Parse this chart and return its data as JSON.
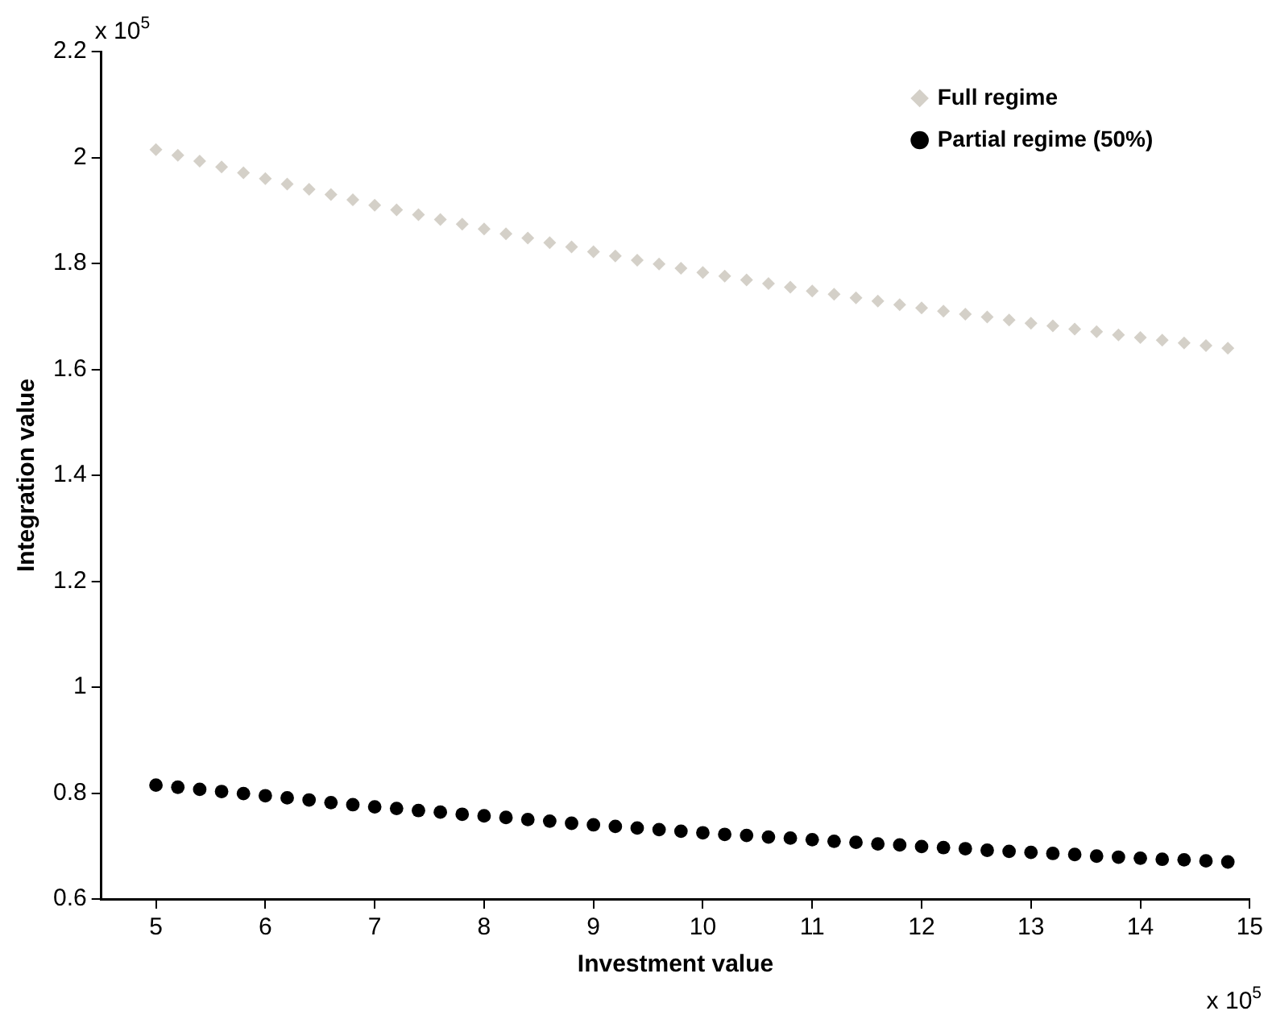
{
  "chart_data": {
    "type": "scatter",
    "xlabel": "Investment value",
    "ylabel": "Integration value",
    "annotations": [
      "x 10$^{5}$",
      "x 10$^{5}$"
    ],
    "x": [
      5.0,
      5.2,
      5.4,
      5.6,
      5.8,
      6.0,
      6.2,
      6.4,
      6.6,
      6.8,
      7.0,
      7.2,
      7.4,
      7.6,
      7.8,
      8.0,
      8.2,
      8.4,
      8.6,
      8.8,
      9.0,
      9.2,
      9.4,
      9.6,
      9.8,
      10.0,
      10.2,
      10.4,
      10.6,
      10.8,
      11.0,
      11.2,
      11.4,
      11.6,
      11.8,
      12.0,
      12.2,
      12.4,
      12.6,
      12.8,
      13.0,
      13.2,
      13.4,
      13.6,
      13.8,
      14.0,
      14.2,
      14.4,
      14.6,
      14.8
    ],
    "series": [
      {
        "name": "Full regime",
        "color": "#d4d0c8",
        "marker": "diamond",
        "values": [
          2.015,
          2.004,
          1.993,
          1.982,
          1.971,
          1.96,
          1.95,
          1.94,
          1.93,
          1.92,
          1.91,
          1.901,
          1.892,
          1.883,
          1.874,
          1.865,
          1.856,
          1.848,
          1.839,
          1.831,
          1.822,
          1.814,
          1.806,
          1.799,
          1.791,
          1.783,
          1.776,
          1.769,
          1.762,
          1.755,
          1.748,
          1.742,
          1.735,
          1.729,
          1.722,
          1.716,
          1.71,
          1.704,
          1.699,
          1.693,
          1.687,
          1.682,
          1.676,
          1.671,
          1.665,
          1.66,
          1.655,
          1.65,
          1.645,
          1.64
        ]
      },
      {
        "name": "Partial regime (50%)",
        "color": "#000000",
        "marker": "circle",
        "values": [
          0.815,
          0.811,
          0.807,
          0.803,
          0.799,
          0.795,
          0.791,
          0.787,
          0.782,
          0.778,
          0.774,
          0.771,
          0.767,
          0.764,
          0.76,
          0.757,
          0.754,
          0.75,
          0.747,
          0.743,
          0.74,
          0.737,
          0.734,
          0.731,
          0.728,
          0.725,
          0.722,
          0.72,
          0.717,
          0.715,
          0.712,
          0.709,
          0.707,
          0.704,
          0.702,
          0.699,
          0.697,
          0.695,
          0.692,
          0.69,
          0.688,
          0.686,
          0.684,
          0.681,
          0.679,
          0.677,
          0.675,
          0.674,
          0.672,
          0.67
        ]
      }
    ],
    "xlim": [
      4.5,
      15
    ],
    "xticks": [
      5,
      6,
      7,
      8,
      9,
      10,
      11,
      12,
      13,
      14,
      15
    ],
    "ylim": [
      0.6,
      2.2
    ],
    "yticks": [
      0.6,
      0.8,
      1,
      1.2,
      1.4,
      1.6,
      1.8,
      2,
      2.2
    ],
    "grid": false,
    "legend": "top right"
  }
}
